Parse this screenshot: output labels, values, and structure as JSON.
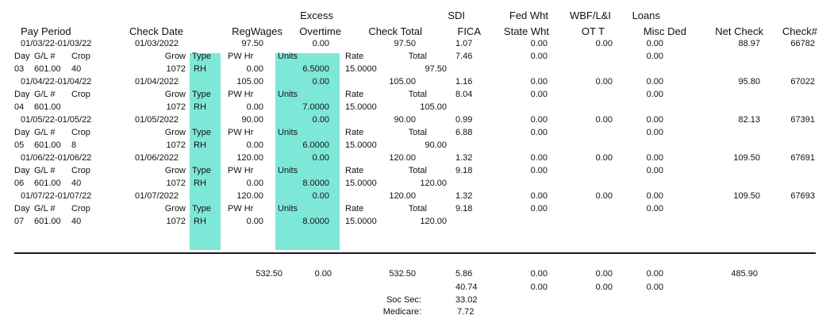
{
  "colors": {
    "highlight": "#7ee8d8",
    "text": "#111111",
    "rule": "#1a1a1a"
  },
  "header": {
    "pay_period": "Pay Period",
    "check_date": "Check Date",
    "reg_wages": "RegWages",
    "excess": "Excess",
    "overtime": "Overtime",
    "check_total": "Check Total",
    "sdi": "SDI",
    "fica": "FICA",
    "fed_wht": "Fed Wht",
    "state_wht": "State Wht",
    "wbf": "WBF/L&I",
    "ott": "OT T",
    "loans": "Loans",
    "misc_ded": "Misc Ded",
    "net_check": "Net Check",
    "check_no": "Check#"
  },
  "sub_labels": {
    "day": "Day",
    "gl": "G/L #",
    "crop": "Crop",
    "grow": "Grow",
    "type": "Type",
    "pw_hr": "PW Hr",
    "units": "Units",
    "rate": "Rate",
    "total": "Total"
  },
  "checks": [
    {
      "pay_period": "01/03/22-01/03/22",
      "check_date": "01/03/2022",
      "reg_wages": "97.50",
      "overtime": "0.00",
      "check_total": "97.50",
      "sdi": "1.07",
      "fed_wht": "0.00",
      "wbf": "0.00",
      "loans": "0.00",
      "net_check": "88.97",
      "check_no": "66782",
      "fica": "7.46",
      "state_wht": "0.00",
      "misc_ded": "0.00",
      "day": "03",
      "gl": "601.00",
      "crop": "40",
      "grow": "1072",
      "type": "RH",
      "pw_hr": "0.00",
      "units": "6.5000",
      "rate": "15.0000",
      "total": "97.50"
    },
    {
      "pay_period": "01/04/22-01/04/22",
      "check_date": "01/04/2022",
      "reg_wages": "105.00",
      "overtime": "0.00",
      "check_total": "105.00",
      "sdi": "1.16",
      "fed_wht": "0.00",
      "wbf": "0.00",
      "loans": "0.00",
      "net_check": "95.80",
      "check_no": "67022",
      "fica": "8.04",
      "state_wht": "0.00",
      "misc_ded": "0.00",
      "day": "04",
      "gl": "601.00",
      "crop": "",
      "grow": "1072",
      "type": "RH",
      "pw_hr": "0.00",
      "units": "7.0000",
      "rate": "15.0000",
      "total": "105.00"
    },
    {
      "pay_period": "01/05/22-01/05/22",
      "check_date": "01/05/2022",
      "reg_wages": "90.00",
      "overtime": "0.00",
      "check_total": "90.00",
      "sdi": "0.99",
      "fed_wht": "0.00",
      "wbf": "0.00",
      "loans": "0.00",
      "net_check": "82.13",
      "check_no": "67391",
      "fica": "6.88",
      "state_wht": "0.00",
      "misc_ded": "0.00",
      "day": "05",
      "gl": "601.00",
      "crop": "8",
      "grow": "1072",
      "type": "RH",
      "pw_hr": "0.00",
      "units": "6.0000",
      "rate": "15.0000",
      "total": "90.00"
    },
    {
      "pay_period": "01/06/22-01/06/22",
      "check_date": "01/06/2022",
      "reg_wages": "120.00",
      "overtime": "0.00",
      "check_total": "120.00",
      "sdi": "1.32",
      "fed_wht": "0.00",
      "wbf": "0.00",
      "loans": "0.00",
      "net_check": "109.50",
      "check_no": "67691",
      "fica": "9.18",
      "state_wht": "0.00",
      "misc_ded": "0.00",
      "day": "06",
      "gl": "601.00",
      "crop": "40",
      "grow": "1072",
      "type": "RH",
      "pw_hr": "0.00",
      "units": "8.0000",
      "rate": "15.0000",
      "total": "120.00"
    },
    {
      "pay_period": "01/07/22-01/07/22",
      "check_date": "01/07/2022",
      "reg_wages": "120.00",
      "overtime": "0.00",
      "check_total": "120.00",
      "sdi": "1.32",
      "fed_wht": "0.00",
      "wbf": "0.00",
      "loans": "0.00",
      "net_check": "109.50",
      "check_no": "67693",
      "fica": "9.18",
      "state_wht": "0.00",
      "misc_ded": "0.00",
      "day": "07",
      "gl": "601.00",
      "crop": "40",
      "grow": "1072",
      "type": "RH",
      "pw_hr": "0.00",
      "units": "8.0000",
      "rate": "15.0000",
      "total": "120.00"
    }
  ],
  "totals": {
    "reg_wages": "532.50",
    "overtime": "0.00",
    "check_total": "532.50",
    "sdi": "5.86",
    "fed_wht": "0.00",
    "wbf": "0.00",
    "loans": "0.00",
    "net_check": "485.90",
    "fica": "40.74",
    "state_wht": "0.00",
    "ott": "0.00",
    "misc_ded": "0.00",
    "soc_sec_label": "Soc Sec:",
    "soc_sec": "33.02",
    "medicare_label": "Medicare:",
    "medicare": "7.72"
  }
}
